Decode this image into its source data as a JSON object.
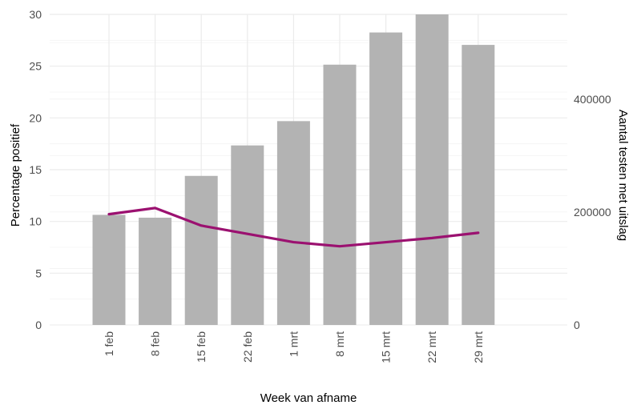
{
  "chart_data": {
    "type": "bar",
    "categories": [
      "1 feb",
      "8 feb",
      "15 feb",
      "22 feb",
      "1 mrt",
      "8 mrt",
      "15 mrt",
      "22 mrt",
      "29 mrt"
    ],
    "series": [
      {
        "type": "bar",
        "axis": "right",
        "values": [
          195000,
          190000,
          264000,
          318000,
          361000,
          461000,
          518000,
          550000,
          496000
        ],
        "color": "#b3b3b3"
      },
      {
        "type": "line",
        "axis": "left",
        "values": [
          10.7,
          11.3,
          9.6,
          8.8,
          8.0,
          7.6,
          8.0,
          8.4,
          8.9
        ],
        "color": "#9b1170"
      }
    ],
    "xlabel": "Week van afname",
    "ylabel": "Percentage positief",
    "y2label": "Aantal testen met uitslag",
    "ylim": [
      0,
      30
    ],
    "y2lim": [
      0,
      550000
    ],
    "yticks": [
      "0",
      "5",
      "10",
      "15",
      "20",
      "25",
      "30"
    ],
    "y2ticks": [
      "0",
      "200000",
      "400000"
    ],
    "grid": true
  }
}
